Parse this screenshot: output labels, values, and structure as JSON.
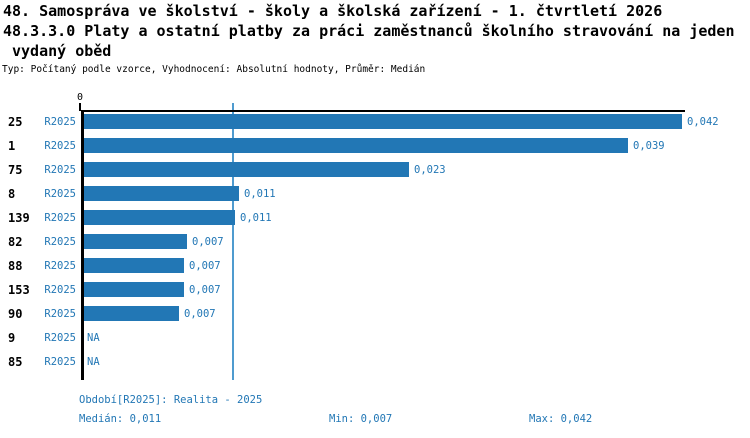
{
  "title": {
    "line1": "48. Samospráva ve školství - školy a školská zařízení - 1. čtvrtletí 2026",
    "line2": "48.3.3.0 Platy a ostatní platby za práci zaměstnanců školního stravování na jeden",
    "line3": "vydaný oběd",
    "subtitle": "Typ: Počítaný podle vzorce, Vyhodnocení: Absolutní hodnoty, Průměr: Medián"
  },
  "chart_data": {
    "type": "bar",
    "orientation": "horizontal",
    "axis": {
      "zero_label": "0",
      "max": 0.042,
      "grid": "off"
    },
    "rows": [
      {
        "id": "25",
        "period": "R2025",
        "value": 0.042,
        "value_est": 0.042,
        "label": "0,042"
      },
      {
        "id": "1",
        "period": "R2025",
        "value": 0.039,
        "value_est": 0.0382,
        "label": "0,039"
      },
      {
        "id": "75",
        "period": "R2025",
        "value": 0.023,
        "value_est": 0.0228,
        "label": "0,023"
      },
      {
        "id": "8",
        "period": "R2025",
        "value": 0.011,
        "value_est": 0.0109,
        "label": "0,011"
      },
      {
        "id": "139",
        "period": "R2025",
        "value": 0.011,
        "value_est": 0.0106,
        "label": "0,011"
      },
      {
        "id": "82",
        "period": "R2025",
        "value": 0.007,
        "value_est": 0.0072,
        "label": "0,007"
      },
      {
        "id": "88",
        "period": "R2025",
        "value": 0.007,
        "value_est": 0.007,
        "label": "0,007"
      },
      {
        "id": "153",
        "period": "R2025",
        "value": 0.007,
        "value_est": 0.007,
        "label": "0,007"
      },
      {
        "id": "90",
        "period": "R2025",
        "value": 0.007,
        "value_est": 0.0067,
        "label": "0,007"
      },
      {
        "id": "9",
        "period": "R2025",
        "value": null,
        "value_est": null,
        "label": "NA"
      },
      {
        "id": "85",
        "period": "R2025",
        "value": null,
        "value_est": null,
        "label": "NA"
      }
    ],
    "reference_line": {
      "name": "median-line",
      "value": 0.0105
    },
    "colors": {
      "bar": "#2277b5",
      "blue_text": "#2277b5",
      "median_line": "#4f9bcf",
      "axis": "#000000"
    }
  },
  "footer": {
    "period_line": "Období[R2025]: Realita - 2025",
    "median": "Medián: 0,011",
    "min": "Min: 0,007",
    "max": "Max: 0,042"
  }
}
